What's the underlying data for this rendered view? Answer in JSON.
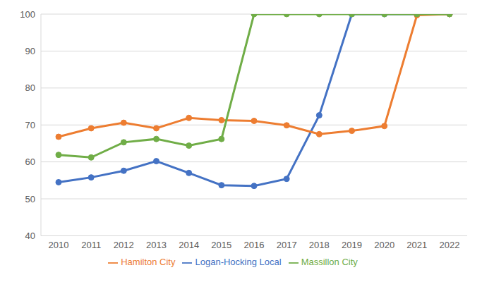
{
  "chart_data": {
    "type": "line",
    "categories": [
      "2010",
      "2011",
      "2012",
      "2013",
      "2014",
      "2015",
      "2016",
      "2017",
      "2018",
      "2019",
      "2020",
      "2021",
      "2022"
    ],
    "series": [
      {
        "name": "Logan-Hocking Local",
        "color": "#4472c4",
        "values": [
          54.5,
          55.8,
          57.6,
          60.2,
          57.0,
          53.7,
          53.5,
          55.4,
          72.6,
          100,
          100,
          100,
          100
        ]
      },
      {
        "name": "Hamilton City",
        "color": "#ed7d31",
        "values": [
          66.8,
          69.1,
          70.6,
          69.1,
          71.9,
          71.3,
          71.1,
          69.9,
          67.5,
          68.4,
          69.7,
          99.7,
          100
        ]
      },
      {
        "name": "Massillon City",
        "color": "#70ad47",
        "values": [
          61.9,
          61.2,
          65.3,
          66.2,
          64.4,
          66.2,
          100,
          100,
          100,
          100,
          100,
          100,
          100
        ]
      }
    ],
    "ylim": [
      40,
      100
    ],
    "yticks": [
      40,
      50,
      60,
      70,
      80,
      90,
      100
    ],
    "grid": true,
    "legend": "bottom",
    "marker": "circle"
  }
}
